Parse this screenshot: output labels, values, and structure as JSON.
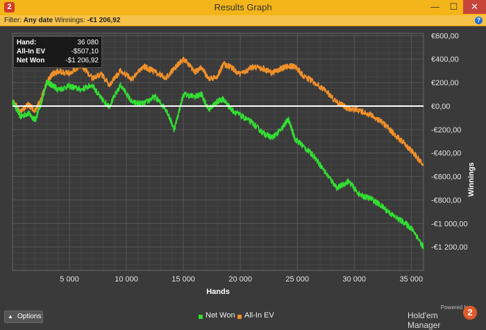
{
  "window": {
    "title": "Results Graph",
    "minimize": "—",
    "maximize": "☐",
    "close": "✕"
  },
  "filter": {
    "label": "Filter:",
    "date": "Any date",
    "winnings_label": "Winnings:",
    "winnings_value": "-€1 206,92"
  },
  "tooltip": {
    "hand_label": "Hand:",
    "hand_value": "36 080",
    "ev_label": "All-In EV",
    "ev_value": "-$507,10",
    "net_label": "Net Won",
    "net_value": "-$1 206,92"
  },
  "options": {
    "label": "Options"
  },
  "brand": {
    "powered": "Powered by",
    "name": "Hold'em Manager",
    "logo": "2"
  },
  "colors": {
    "net_won": "#33dd33",
    "all_in_ev": "#f0902a",
    "zero_line": "#ffffff",
    "background": "#3a3a3a"
  },
  "chart_data": {
    "type": "line",
    "xlabel": "Hands",
    "ylabel": "Winnings",
    "xlim": [
      0,
      36080
    ],
    "ylim": [
      -1400,
      620
    ],
    "x_ticks": [
      5000,
      10000,
      15000,
      20000,
      25000,
      30000,
      35000
    ],
    "x_tick_labels": [
      "5 000",
      "10 000",
      "15 000",
      "20 000",
      "25 000",
      "30 000",
      "35 000"
    ],
    "y_ticks": [
      600,
      400,
      200,
      0,
      -200,
      -400,
      -600,
      -800,
      -1000,
      -1200
    ],
    "y_tick_labels": [
      "€600,00",
      "€400,00",
      "€200,00",
      "€0,00",
      "-€200,00",
      "-€400,00",
      "-€600,00",
      "-€800,00",
      "-€1 000,00",
      "-€1 200,00"
    ],
    "grid": true,
    "legend": "bottom",
    "series": [
      {
        "name": "Net Won",
        "points": [
          [
            0,
            40
          ],
          [
            700,
            -90
          ],
          [
            1400,
            -60
          ],
          [
            2000,
            -120
          ],
          [
            2500,
            20
          ],
          [
            3000,
            200
          ],
          [
            3500,
            180
          ],
          [
            4000,
            140
          ],
          [
            5000,
            170
          ],
          [
            6000,
            140
          ],
          [
            7000,
            180
          ],
          [
            7800,
            60
          ],
          [
            8500,
            0
          ],
          [
            9500,
            180
          ],
          [
            10500,
            30
          ],
          [
            11500,
            20
          ],
          [
            12500,
            80
          ],
          [
            13500,
            -30
          ],
          [
            14200,
            -200
          ],
          [
            15000,
            100
          ],
          [
            16000,
            80
          ],
          [
            16600,
            100
          ],
          [
            17200,
            -30
          ],
          [
            18000,
            40
          ],
          [
            18500,
            60
          ],
          [
            19200,
            -30
          ],
          [
            20000,
            -80
          ],
          [
            21000,
            -140
          ],
          [
            22000,
            -230
          ],
          [
            22800,
            -270
          ],
          [
            23600,
            -200
          ],
          [
            24200,
            -110
          ],
          [
            24800,
            -280
          ],
          [
            25500,
            -340
          ],
          [
            26500,
            -430
          ],
          [
            27500,
            -570
          ],
          [
            28500,
            -700
          ],
          [
            29500,
            -640
          ],
          [
            30500,
            -760
          ],
          [
            31500,
            -790
          ],
          [
            32500,
            -860
          ],
          [
            33500,
            -940
          ],
          [
            34500,
            -1000
          ],
          [
            35200,
            -1060
          ],
          [
            36080,
            -1207
          ]
        ]
      },
      {
        "name": "All-In EV",
        "points": [
          [
            0,
            40
          ],
          [
            700,
            -40
          ],
          [
            1400,
            10
          ],
          [
            2000,
            -40
          ],
          [
            2500,
            60
          ],
          [
            3000,
            200
          ],
          [
            3500,
            270
          ],
          [
            4000,
            300
          ],
          [
            5000,
            280
          ],
          [
            6000,
            350
          ],
          [
            7000,
            240
          ],
          [
            7800,
            270
          ],
          [
            8500,
            180
          ],
          [
            9500,
            300
          ],
          [
            10500,
            230
          ],
          [
            11500,
            340
          ],
          [
            12500,
            290
          ],
          [
            13500,
            240
          ],
          [
            14200,
            320
          ],
          [
            15000,
            400
          ],
          [
            16000,
            290
          ],
          [
            16600,
            330
          ],
          [
            17200,
            230
          ],
          [
            18000,
            250
          ],
          [
            18500,
            360
          ],
          [
            19200,
            330
          ],
          [
            20000,
            270
          ],
          [
            21000,
            330
          ],
          [
            22000,
            320
          ],
          [
            22800,
            280
          ],
          [
            23600,
            320
          ],
          [
            24200,
            340
          ],
          [
            24800,
            340
          ],
          [
            25500,
            260
          ],
          [
            26500,
            200
          ],
          [
            27500,
            130
          ],
          [
            28500,
            30
          ],
          [
            29500,
            -20
          ],
          [
            30500,
            -40
          ],
          [
            31500,
            -80
          ],
          [
            32500,
            -140
          ],
          [
            33500,
            -240
          ],
          [
            34500,
            -330
          ],
          [
            35200,
            -400
          ],
          [
            36080,
            -507
          ]
        ]
      }
    ]
  }
}
